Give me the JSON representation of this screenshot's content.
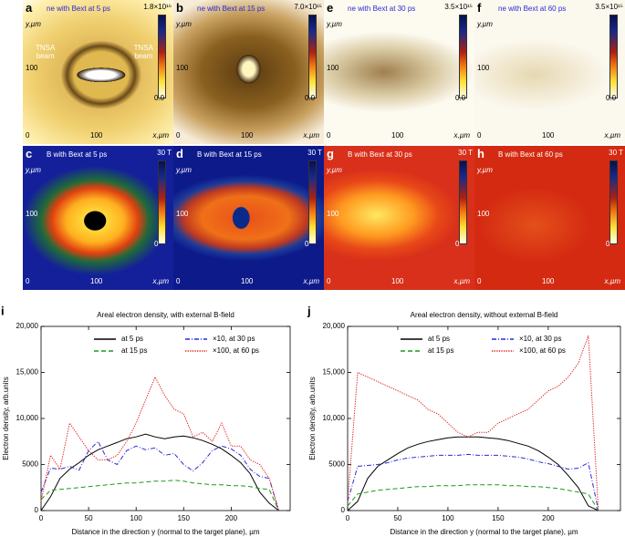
{
  "image_panels": {
    "axis_labels": {
      "y": "y,µm",
      "x": "x,µm",
      "tick0": "0",
      "tick100": "100"
    },
    "panels": [
      {
        "letter": "a",
        "title": "ne with Bext at 5 ps",
        "cbar_top": "1.8×10¹⁶",
        "cbar_bottom": "0.0",
        "annotations": [
          "TNSA\nbeam",
          "TNSA\nbeam"
        ]
      },
      {
        "letter": "b",
        "title": "ne with Bext at 15 ps",
        "cbar_top": "7.0×10¹⁵",
        "cbar_bottom": "0.0"
      },
      {
        "letter": "e",
        "title": "ne with Bext at 30 ps",
        "cbar_top": "3.5×10¹⁵",
        "cbar_bottom": "0.0"
      },
      {
        "letter": "f",
        "title": "ne with Bext at 60 ps",
        "cbar_top": "3.5×10¹⁵",
        "cbar_bottom": "0.0"
      },
      {
        "letter": "c",
        "title": "B with Bext at 5 ps",
        "cbar_top": "30 T",
        "cbar_bottom": "0"
      },
      {
        "letter": "d",
        "title": "B with Bext at 15 ps",
        "cbar_top": "30 T",
        "cbar_bottom": "0"
      },
      {
        "letter": "g",
        "title": "B with Bext at 30 ps",
        "cbar_top": "30 T",
        "cbar_bottom": "0"
      },
      {
        "letter": "h",
        "title": "B with Bext at 60 ps",
        "cbar_top": "30 T",
        "cbar_bottom": "0"
      }
    ]
  },
  "chart_data": [
    {
      "type": "line",
      "letter": "i",
      "title": "Areal electron density, with external B-field",
      "xlabel": "Distance in the direction y (normal to the target plane), µm",
      "ylabel": "Electron density, arb.units",
      "x": [
        0,
        10,
        20,
        30,
        40,
        50,
        60,
        70,
        80,
        90,
        100,
        110,
        120,
        130,
        140,
        150,
        160,
        170,
        180,
        190,
        200,
        210,
        220,
        230,
        240,
        250
      ],
      "xlim": [
        0,
        262
      ],
      "xticks": [
        0,
        50,
        100,
        150,
        200
      ],
      "ylim": [
        0,
        20000
      ],
      "yticks": [
        0,
        5000,
        {
          "value": 10000,
          "label": "10,000"
        },
        {
          "value": 15000,
          "label": "15,000"
        },
        {
          "value": 20000,
          "label": "20,000"
        }
      ],
      "series": [
        {
          "name": "at 5 ps",
          "color": "#000000",
          "style": "solid",
          "values": [
            0,
            1500,
            3500,
            4500,
            5200,
            6000,
            6600,
            7000,
            7400,
            7800,
            8000,
            8300,
            8000,
            7800,
            8000,
            8100,
            7900,
            7600,
            7200,
            6700,
            6000,
            5200,
            4000,
            2000,
            800,
            0
          ]
        },
        {
          "name": "at 15 ps",
          "color": "#1a9a1a",
          "style": "dashed",
          "values": [
            1200,
            2200,
            2300,
            2400,
            2500,
            2600,
            2700,
            2800,
            2900,
            3000,
            3000,
            3100,
            3200,
            3200,
            3300,
            3200,
            3000,
            2900,
            2800,
            2800,
            2700,
            2700,
            2600,
            2400,
            2300,
            0
          ]
        },
        {
          "name": "×10, at 30 ps",
          "color": "#2a2ad8",
          "style": "dashdot",
          "values": [
            2000,
            4600,
            4500,
            4800,
            4400,
            6500,
            7500,
            5500,
            5000,
            6500,
            7000,
            6600,
            6800,
            6000,
            6200,
            5000,
            4300,
            5200,
            6500,
            7000,
            6700,
            6000,
            4500,
            3700,
            3500,
            0
          ]
        },
        {
          "name": "×100, at 60 ps",
          "color": "#e02020",
          "style": "dotted",
          "values": [
            1000,
            6000,
            4500,
            9500,
            8000,
            6500,
            5500,
            5500,
            6000,
            7500,
            9500,
            12000,
            14500,
            12500,
            11000,
            10500,
            8000,
            8500,
            7500,
            9500,
            7000,
            7000,
            5500,
            5000,
            3500,
            0
          ]
        }
      ]
    },
    {
      "type": "line",
      "letter": "j",
      "title": "Areal electron density, without external B-field",
      "xlabel": "Distance in the direction y (normal to the target plane), µm",
      "ylabel": "Electron density, arb.units",
      "x": [
        0,
        10,
        20,
        30,
        40,
        50,
        60,
        70,
        80,
        90,
        100,
        110,
        120,
        130,
        140,
        150,
        160,
        170,
        180,
        190,
        200,
        210,
        220,
        230,
        240,
        250
      ],
      "xlim": [
        0,
        272
      ],
      "xticks": [
        0,
        50,
        100,
        150,
        200
      ],
      "ylim": [
        0,
        20000
      ],
      "yticks": [
        0,
        5000,
        {
          "value": 10000,
          "label": "10,000"
        },
        {
          "value": 15000,
          "label": "15,000"
        },
        {
          "value": 20000,
          "label": "20,000"
        }
      ],
      "series": [
        {
          "name": "at 5 ps",
          "color": "#000000",
          "style": "solid",
          "values": [
            0,
            1000,
            3500,
            4800,
            5500,
            6200,
            6800,
            7200,
            7500,
            7700,
            7900,
            8000,
            8000,
            8000,
            7900,
            7800,
            7600,
            7300,
            7000,
            6500,
            5800,
            5000,
            3800,
            2500,
            500,
            0
          ]
        },
        {
          "name": "at 15 ps",
          "color": "#1a9a1a",
          "style": "dashed",
          "values": [
            500,
            1800,
            2000,
            2200,
            2300,
            2400,
            2500,
            2600,
            2600,
            2700,
            2700,
            2700,
            2800,
            2800,
            2800,
            2800,
            2700,
            2700,
            2600,
            2600,
            2500,
            2400,
            2200,
            2000,
            1800,
            0
          ]
        },
        {
          "name": "×10, at 30 ps",
          "color": "#2a2ad8",
          "style": "dashdot",
          "values": [
            1000,
            4800,
            4900,
            5000,
            5200,
            5500,
            5700,
            5800,
            5900,
            6000,
            6000,
            6000,
            6100,
            6000,
            6000,
            6000,
            5900,
            5800,
            5600,
            5300,
            5100,
            4800,
            4500,
            4600,
            5200,
            0
          ]
        },
        {
          "name": "×100, at 60 ps",
          "color": "#e02020",
          "style": "dotted",
          "values": [
            1000,
            15000,
            14500,
            14000,
            13500,
            13000,
            12500,
            12000,
            11000,
            10500,
            9500,
            8500,
            8000,
            8500,
            8500,
            9500,
            10000,
            10500,
            11000,
            12000,
            13000,
            13500,
            14500,
            16000,
            19000,
            0
          ]
        }
      ]
    }
  ]
}
